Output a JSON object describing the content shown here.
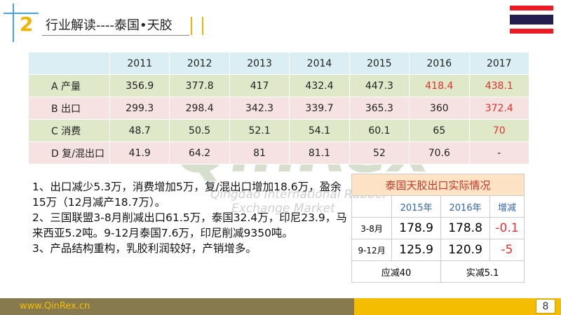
{
  "header": {
    "number": "2",
    "title": "行业解读----泰国•天胶"
  },
  "table": {
    "header": [
      "",
      "2011",
      "2012",
      "2013",
      "2014",
      "2015",
      "2016",
      "2017"
    ],
    "rows": [
      [
        "A 产量",
        "356.9",
        "377.8",
        "417",
        "432.4",
        "447.3",
        "418.4",
        "438.1"
      ],
      [
        "B 出口",
        "299.3",
        "298.4",
        "342.3",
        "339.7",
        "365.3",
        "360",
        "372.4"
      ],
      [
        "C 消费",
        "48.7",
        "50.5",
        "52.1",
        "54.1",
        "60.1",
        "65",
        "70"
      ],
      [
        "D 复/混出口",
        "41.9",
        "64.2",
        "81",
        "81.1",
        "52",
        "70.6",
        "-"
      ]
    ]
  },
  "notes": [
    "1、出口减少5.3万，消费增加5万，复/混出口增加18.6万，盈余15万（12月减产18.7万）。",
    "2、三国联盟3-8月削减出口61.5万，泰国32.4万，印尼23.9，马来西亚5.2吨。9-12月泰国7.6万，印尼削减9350吨。",
    "3、产品结构重构，乳胶利润较好，产销增多。"
  ],
  "side_table": {
    "title": "泰国天胶出口实际情况",
    "header": [
      "",
      "2015年",
      "2016年",
      "增减"
    ],
    "rows": [
      [
        "3-8月",
        "178.9",
        "178.8",
        "-0.1"
      ],
      [
        "9-12月",
        "125.9",
        "120.9",
        "-5"
      ]
    ],
    "footer": [
      "应减40",
      "实减5.1"
    ]
  },
  "watermark": {
    "brand": "QinRex",
    "line1": "Qingdao International Rubber",
    "line2": "Exchange Market"
  },
  "footer": {
    "url": "www.QinRex.cn",
    "page": "8"
  }
}
